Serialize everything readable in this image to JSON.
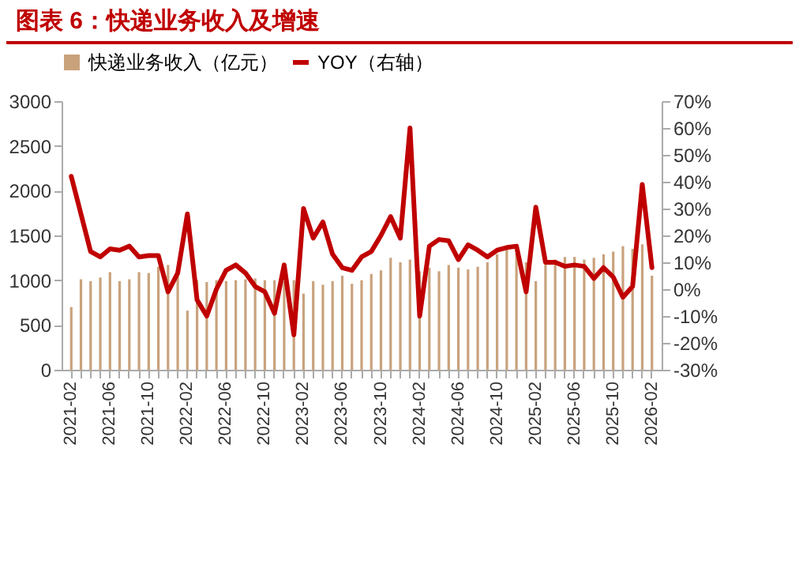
{
  "chart_data": {
    "type": "bar",
    "title": "图表 6：快递业务收入及增速",
    "categories": [
      "2021-02",
      null,
      null,
      null,
      "2021-06",
      null,
      null,
      null,
      "2021-10",
      null,
      null,
      null,
      "2022-02",
      null,
      null,
      null,
      "2022-06",
      null,
      null,
      null,
      "2022-10",
      null,
      null,
      null,
      "2023-02",
      null,
      null,
      null,
      "2023-06",
      null,
      null,
      null,
      "2023-10",
      null,
      null,
      null,
      "2024-02",
      null,
      null,
      null,
      "2024-06",
      null,
      null,
      null,
      "2024-10",
      null,
      null,
      null,
      "2025-02",
      null,
      null,
      null,
      "2025-06",
      null,
      null,
      null,
      "2025-10",
      null,
      null,
      null,
      "2026-02"
    ],
    "series": [
      {
        "name": "快递业务收入（亿元）",
        "color": "#c9a27c",
        "values": [
          700,
          1010,
          990,
          1030,
          1090,
          990,
          1010,
          1090,
          1080,
          1150,
          1170,
          1090,
          660,
          1000,
          980,
          1000,
          990,
          1000,
          1010,
          1020,
          1000,
          1000,
          990,
          1000,
          850,
          990,
          950,
          990,
          1050,
          960,
          1000,
          1070,
          1110,
          1250,
          1200,
          1230,
          1100,
          1140,
          1100,
          1170,
          1140,
          1120,
          1150,
          1200,
          1290,
          1350,
          1300,
          1200,
          990,
          1230,
          1230,
          1260,
          1260,
          1230,
          1250,
          1290,
          1320,
          1380,
          1350,
          1400,
          1050
        ]
      },
      {
        "name": "YOY（右轴）",
        "type": "line",
        "axis": "y2",
        "color": "#c00000",
        "values": [
          42,
          28,
          14,
          12,
          15,
          14.5,
          16,
          12,
          12.5,
          12.5,
          -1,
          6,
          28,
          -4,
          -10,
          0,
          7,
          9,
          6,
          1,
          -1,
          -9,
          9,
          -17,
          30,
          19,
          25,
          13,
          8,
          7,
          12,
          14,
          20,
          27,
          19,
          60,
          -10,
          16,
          18.5,
          18,
          11,
          16.5,
          14.5,
          12,
          14.5,
          15.5,
          16,
          -1,
          30.5,
          10,
          10,
          8.5,
          9,
          8.5,
          4,
          8,
          4.5,
          -3,
          1,
          39,
          8
        ]
      }
    ],
    "ylim": [
      0,
      3000
    ],
    "yticks": [
      0,
      500,
      1000,
      1500,
      2000,
      2500,
      3000
    ],
    "y2lim": [
      -30,
      70
    ],
    "y2ticks": [
      {
        "value": -30,
        "label": "-30%"
      },
      {
        "value": -20,
        "label": "-20%"
      },
      {
        "value": -10,
        "label": "-10%"
      },
      {
        "value": 0,
        "label": "0%"
      },
      {
        "value": 10,
        "label": "10%"
      },
      {
        "value": 20,
        "label": "20%"
      },
      {
        "value": 30,
        "label": "30%"
      },
      {
        "value": 40,
        "label": "40%"
      },
      {
        "value": 50,
        "label": "50%"
      },
      {
        "value": 60,
        "label": "60%"
      },
      {
        "value": 70,
        "label": "70%"
      }
    ],
    "legend": "top",
    "grid": false
  }
}
